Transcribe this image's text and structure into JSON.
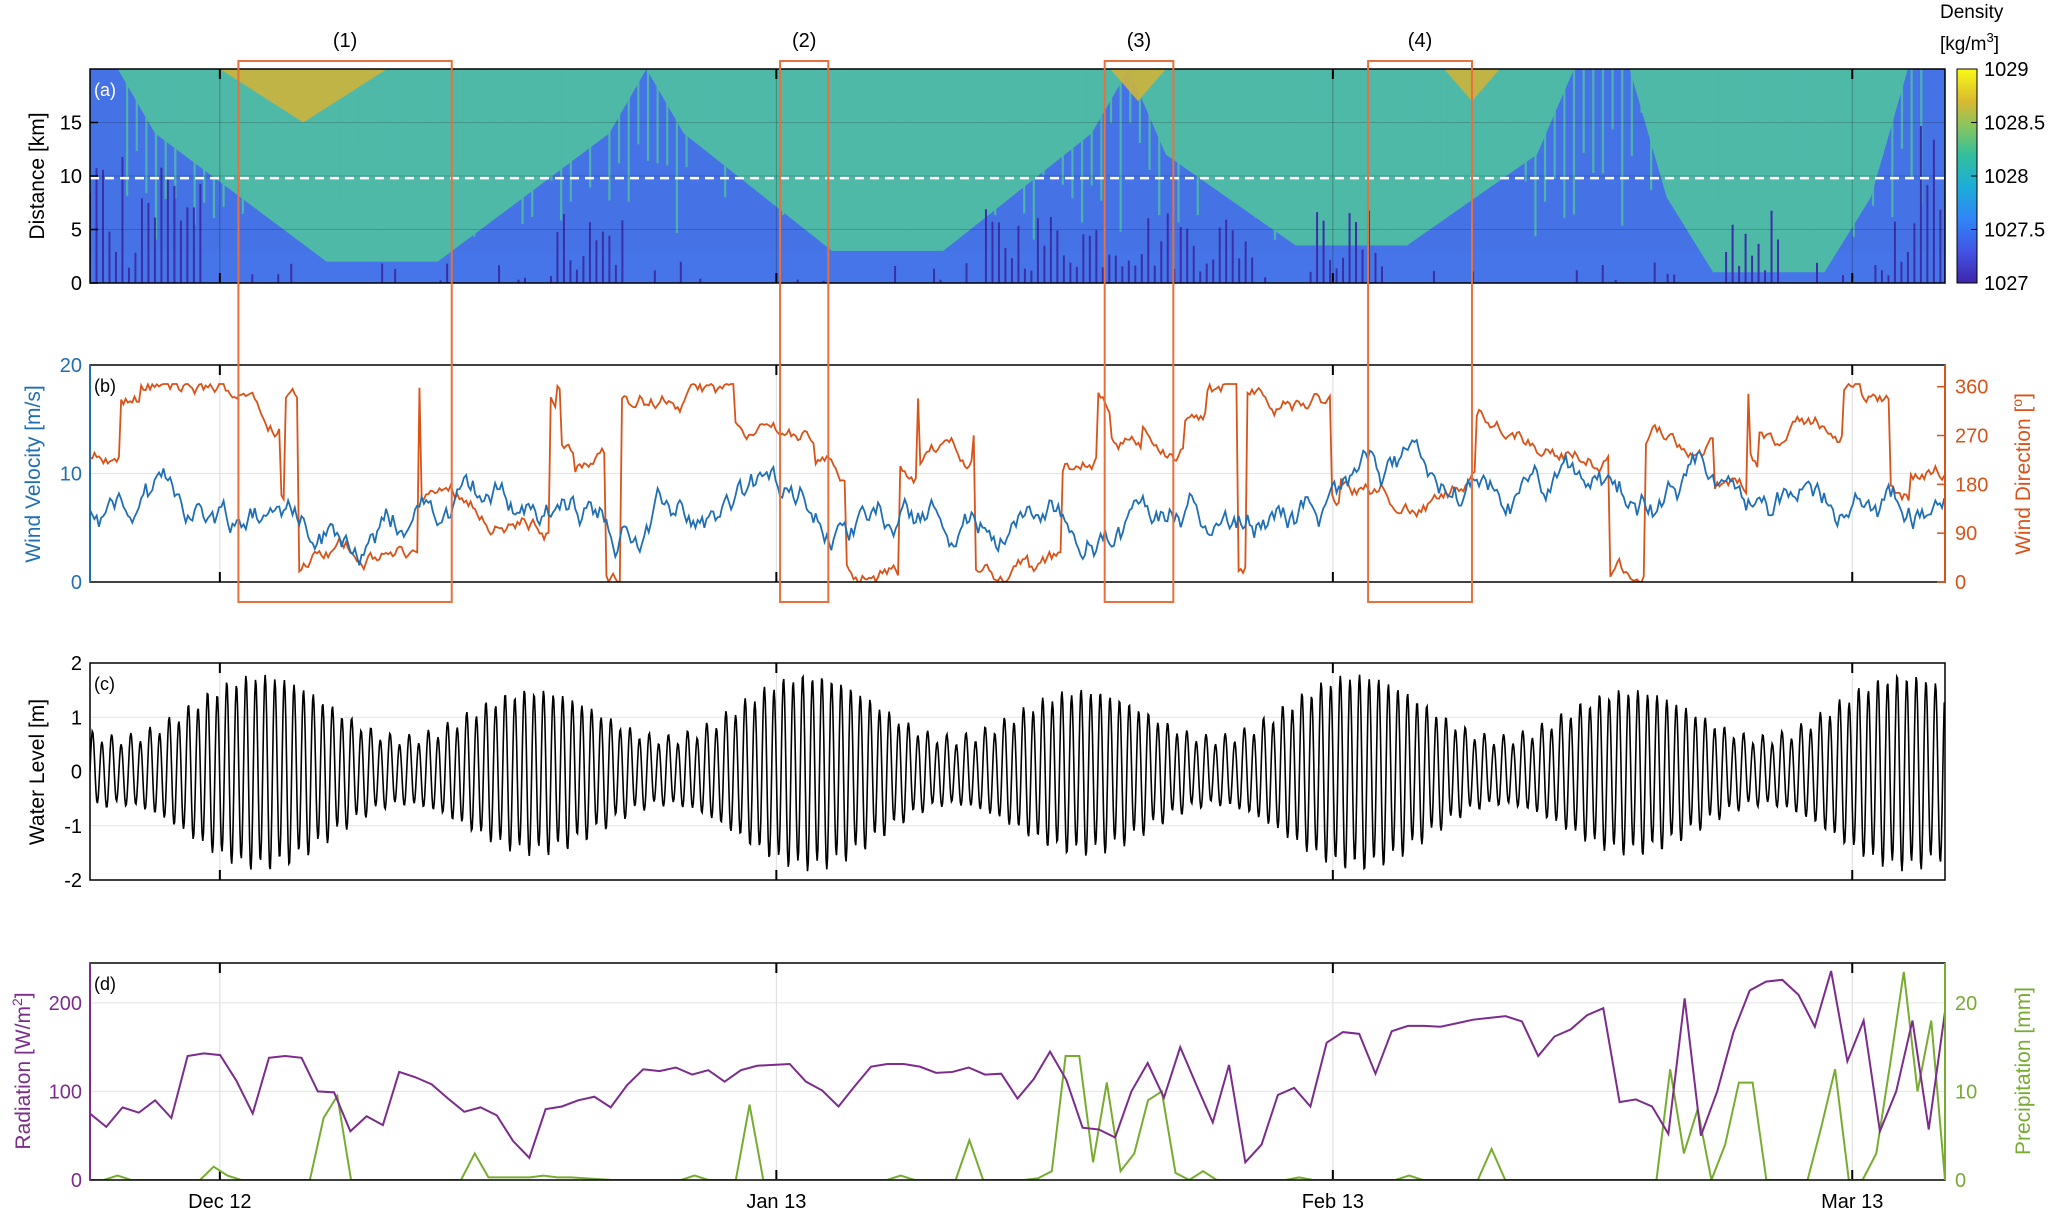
{
  "chart_data": [
    {
      "panel_label": "(a)",
      "type": "heatmap",
      "ylabel": "Distance [km]",
      "ylim": [
        0,
        20
      ],
      "yticks": [
        0,
        5,
        10,
        15
      ],
      "colorbar": {
        "title_line1": "Density",
        "title_line2_prefix": "[kg/m",
        "title_line2_sup": "3",
        "title_line2_suffix": "]",
        "range": [
          1027,
          1029
        ],
        "ticks": [
          1027,
          1027.5,
          1028,
          1028.5,
          1029
        ],
        "tick_labels": [
          "1027",
          "1027.5",
          "1028",
          "1028.5",
          "1029"
        ]
      },
      "reference_line_km": 9.8,
      "colors": [
        "#3b2fa8",
        "#4575e8",
        "#4fb9a8",
        "#cdb43c"
      ],
      "events": [
        {
          "label": "(1)",
          "start_day": 8.0,
          "end_day": 19.5
        },
        {
          "label": "(2)",
          "start_day": 37.2,
          "end_day": 39.8
        },
        {
          "label": "(3)",
          "start_day": 54.7,
          "end_day": 58.4
        },
        {
          "label": "(4)",
          "start_day": 68.9,
          "end_day": 74.5
        }
      ]
    },
    {
      "panel_label": "(b)",
      "type": "line",
      "ylabel": "Wind Velocity [m/s]",
      "ylim": [
        0,
        20
      ],
      "yticks": [
        0,
        10,
        20
      ],
      "y2label_prefix": "Wind Direction [",
      "y2label_sup": "o",
      "y2label_suffix": "]",
      "y2lim": [
        0,
        400
      ],
      "y2ticks": [
        0,
        90,
        180,
        270,
        360
      ],
      "series": [
        {
          "axis": "left",
          "color": "#1f6fb5"
        },
        {
          "axis": "right",
          "color": "#d95319"
        }
      ]
    },
    {
      "panel_label": "(c)",
      "type": "line",
      "ylabel": "Water Level [m]",
      "ylim": [
        -2,
        2
      ],
      "yticks": [
        -2,
        -1,
        0,
        1,
        2
      ],
      "series": [
        {
          "color": "#000000"
        }
      ]
    },
    {
      "panel_label": "(d)",
      "type": "line",
      "ylabel_prefix": "Radiation [W/m",
      "ylabel_sup": "2",
      "ylabel_suffix": "]",
      "ylim": [
        0,
        245
      ],
      "yticks": [
        0,
        100,
        200
      ],
      "y2label": "Precipitation [mm]",
      "y2lim": [
        0,
        24.5
      ],
      "y2ticks": [
        0,
        10,
        20
      ],
      "series": [
        {
          "axis": "left",
          "color": "#7b2c8c",
          "values": [
            75,
            60,
            82,
            76,
            90,
            70,
            140,
            143,
            141,
            112,
            75,
            138,
            140,
            138,
            100,
            99,
            55,
            72,
            62,
            122,
            116,
            108,
            92,
            77,
            82,
            73,
            44,
            25,
            80,
            83,
            90,
            94,
            82,
            107,
            125,
            123,
            127,
            119,
            124,
            111,
            124,
            129,
            130,
            131,
            111,
            101,
            83,
            106,
            128,
            131,
            131,
            128,
            121,
            122,
            127,
            119,
            120,
            92,
            114,
            145,
            113,
            59,
            57,
            48,
            100,
            132,
            93,
            150,
            107,
            65,
            130,
            20,
            40,
            96,
            104,
            83,
            155,
            167,
            165,
            120,
            168,
            174,
            174,
            173,
            177,
            181,
            183,
            185,
            179,
            140,
            162,
            170,
            186,
            194,
            88,
            91,
            83,
            52,
            205,
            50,
            100,
            167,
            214,
            224,
            226,
            209,
            173,
            236,
            134,
            180,
            55,
            100,
            180,
            57,
            190
          ]
        },
        {
          "axis": "right",
          "color": "#77ac30",
          "values": [
            0,
            0,
            0.5,
            0,
            0,
            0,
            0,
            0,
            0,
            1.5,
            0.5,
            0,
            0,
            0,
            0,
            0,
            0,
            7,
            9.5,
            0,
            0,
            0,
            0,
            0,
            0,
            0,
            0,
            0,
            3,
            0.3,
            0.3,
            0.3,
            0.3,
            0.5,
            0.3,
            0.3,
            0.2,
            0.1,
            0,
            0,
            0,
            0,
            0,
            0,
            0.5,
            0,
            0,
            0,
            8.5,
            0,
            0,
            0,
            0,
            0,
            0,
            0,
            0,
            0,
            0,
            0.5,
            0,
            0,
            0,
            0,
            4.5,
            0,
            0,
            0,
            0,
            0.2,
            1,
            14,
            14,
            2,
            11,
            1,
            3,
            9,
            10,
            0.8,
            0,
            1,
            0,
            0,
            0,
            0,
            0,
            0,
            0.3,
            0,
            0,
            0,
            0,
            0,
            0,
            0,
            0.5,
            0,
            0,
            0,
            0,
            0,
            3.5,
            0,
            0,
            0,
            0,
            0,
            0,
            0,
            0,
            0,
            0,
            0,
            0,
            12.5,
            3,
            8,
            0,
            4,
            11,
            11,
            0,
            0,
            0,
            0,
            6,
            12.5,
            0,
            0,
            3,
            13,
            23.5,
            10,
            18,
            0
          ]
        }
      ]
    }
  ],
  "shared_x": {
    "xlim": [
      0,
      100
    ],
    "ticks": [
      {
        "day": 7,
        "label": "Dec 12"
      },
      {
        "day": 37,
        "label": "Jan 13"
      },
      {
        "day": 67,
        "label": "Feb 13"
      },
      {
        "day": 95,
        "label": "Mar 13"
      }
    ]
  }
}
